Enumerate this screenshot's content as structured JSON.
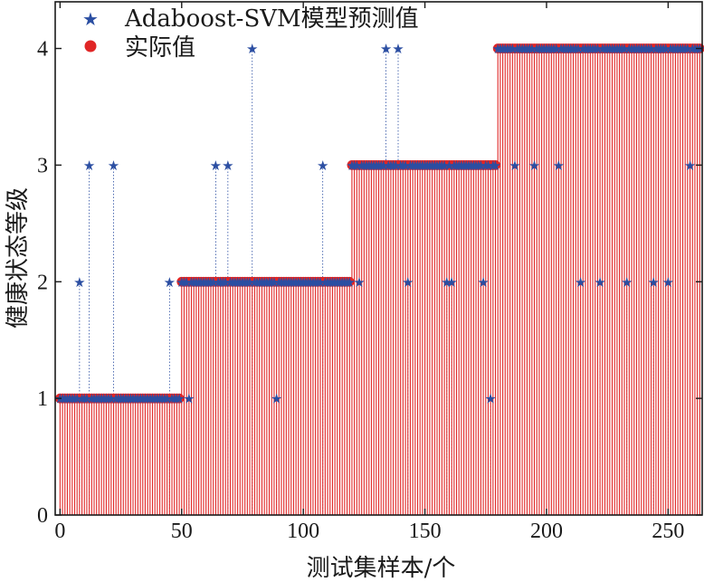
{
  "chart_data": {
    "type": "stem",
    "xlabel": "测试集样本/个",
    "ylabel": "健康状态等级",
    "xlim": [
      -2,
      264
    ],
    "ylim": [
      0,
      4.4
    ],
    "xticks": [
      0,
      50,
      100,
      150,
      200,
      250
    ],
    "yticks": [
      0,
      1,
      2,
      3,
      4
    ],
    "legend_position": "top-left",
    "grid": false,
    "series": [
      {
        "name": "Adaboost-SVM模型预测值",
        "marker": "star",
        "color": "#2b4ea2",
        "defaults": [
          {
            "x_from": 0,
            "x_to": 49,
            "y": 1
          },
          {
            "x_from": 50,
            "x_to": 119,
            "y": 2
          },
          {
            "x_from": 120,
            "x_to": 179,
            "y": 3
          },
          {
            "x_from": 180,
            "x_to": 263,
            "y": 4
          }
        ],
        "points": [
          {
            "x": 8,
            "y": 2
          },
          {
            "x": 12,
            "y": 3
          },
          {
            "x": 22,
            "y": 3
          },
          {
            "x": 45,
            "y": 2
          },
          {
            "x": 53,
            "y": 1
          },
          {
            "x": 64,
            "y": 3
          },
          {
            "x": 69,
            "y": 3
          },
          {
            "x": 79,
            "y": 4
          },
          {
            "x": 89,
            "y": 1
          },
          {
            "x": 108,
            "y": 3
          },
          {
            "x": 123,
            "y": 2
          },
          {
            "x": 134,
            "y": 4
          },
          {
            "x": 139,
            "y": 4
          },
          {
            "x": 143,
            "y": 2
          },
          {
            "x": 159,
            "y": 2
          },
          {
            "x": 161,
            "y": 2
          },
          {
            "x": 174,
            "y": 2
          },
          {
            "x": 177,
            "y": 1
          },
          {
            "x": 187,
            "y": 3
          },
          {
            "x": 195,
            "y": 3
          },
          {
            "x": 205,
            "y": 3
          },
          {
            "x": 214,
            "y": 2
          },
          {
            "x": 222,
            "y": 2
          },
          {
            "x": 233,
            "y": 2
          },
          {
            "x": 244,
            "y": 2
          },
          {
            "x": 250,
            "y": 2
          },
          {
            "x": 259,
            "y": 3
          }
        ]
      },
      {
        "name": "实际值",
        "marker": "circle",
        "color": "#e02626",
        "segments": [
          {
            "x_from": 0,
            "x_to": 49,
            "y": 1
          },
          {
            "x_from": 50,
            "x_to": 119,
            "y": 2
          },
          {
            "x_from": 120,
            "x_to": 179,
            "y": 3
          },
          {
            "x_from": 180,
            "x_to": 263,
            "y": 4
          }
        ]
      }
    ]
  }
}
